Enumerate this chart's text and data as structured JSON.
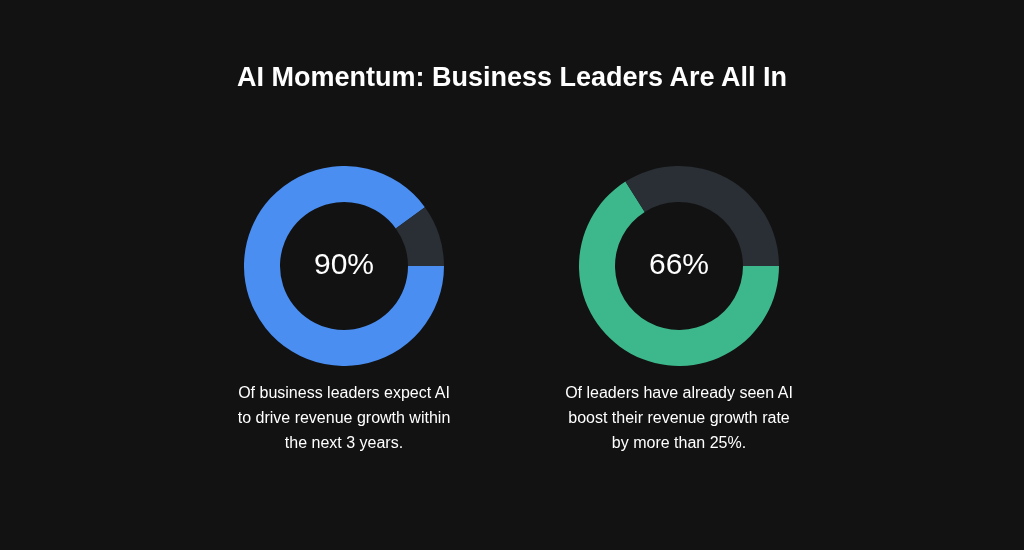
{
  "chart_data": [
    {
      "type": "other",
      "title": "AI Momentum: Business Leaders Are All In"
    },
    {
      "type": "donut",
      "categories": [
        null,
        null
      ],
      "values": [
        90,
        10
      ],
      "colors": [
        "#4a8ef2",
        "#2a2f35"
      ],
      "annotations": [
        "90%",
        "Of business leaders expect AI to drive revenue growth within the next 3 years."
      ]
    },
    {
      "type": "donut",
      "categories": [
        null,
        null
      ],
      "values": [
        66,
        34
      ],
      "colors": [
        "#3db88c",
        "#2a2f35"
      ],
      "annotations": [
        "66%",
        "Of leaders have already seen AI boost their revenue growth rate by more than 25%."
      ]
    }
  ]
}
